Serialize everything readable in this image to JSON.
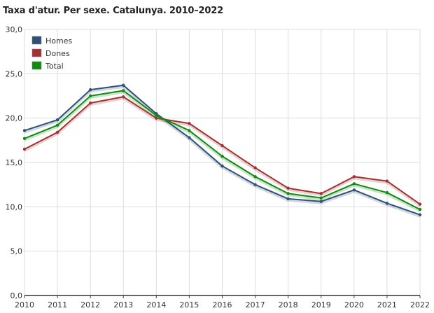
{
  "chart_data": {
    "type": "line",
    "title": "Taxa d'atur. Per sexe. Catalunya. 2010–2022",
    "xlabel": "",
    "ylabel": "",
    "categories": [
      "2010",
      "2011",
      "2012",
      "2013",
      "2014",
      "2015",
      "2016",
      "2017",
      "2018",
      "2019",
      "2020",
      "2021",
      "2022"
    ],
    "y_tick_labels": [
      "0,0",
      "5,0",
      "10,0",
      "15,0",
      "20,0",
      "25,0",
      "30,0"
    ],
    "y_ticks": [
      0,
      5,
      10,
      15,
      20,
      25,
      30
    ],
    "ylim": [
      0,
      30
    ],
    "grid": true,
    "legend_position": "top-left",
    "series": [
      {
        "name": "Homes",
        "color": "#2f5175",
        "values": [
          18.6,
          19.8,
          23.2,
          23.7,
          20.5,
          17.8,
          14.6,
          12.5,
          10.9,
          10.6,
          11.9,
          10.4,
          9.1
        ]
      },
      {
        "name": "Dones",
        "color": "#a03333",
        "values": [
          16.5,
          18.4,
          21.7,
          22.4,
          20.0,
          19.4,
          16.9,
          14.4,
          12.1,
          11.5,
          13.4,
          12.9,
          10.3
        ]
      },
      {
        "name": "Total",
        "color": "#138a13",
        "values": [
          17.7,
          19.2,
          22.5,
          23.1,
          20.3,
          18.6,
          15.7,
          13.4,
          11.5,
          11.0,
          12.6,
          11.6,
          9.7
        ]
      }
    ]
  }
}
